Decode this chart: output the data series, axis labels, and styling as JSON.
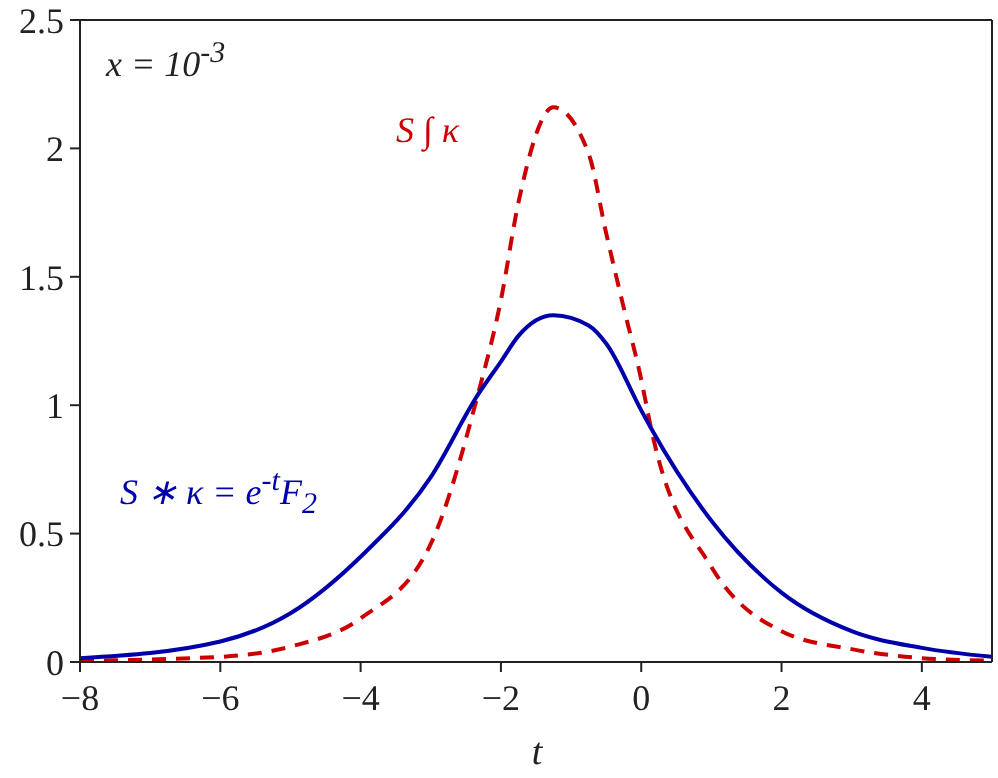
{
  "chart_data": {
    "type": "line",
    "xlabel": "t",
    "annotations": [
      "x = 10$^{-3}$"
    ],
    "series": [
      {
        "name": "S ∫ κ",
        "color": "#cc0000",
        "line_style": "dashed",
        "x": [
          -8,
          -6,
          -5,
          -4,
          -3,
          -2.33,
          -2,
          -1.75,
          -1.25,
          -0.75,
          -0.5,
          -0.25,
          0,
          0.14,
          1,
          2,
          3,
          4,
          5
        ],
        "values": [
          0.005,
          0.02,
          0.06,
          0.17,
          0.46,
          1.04,
          1.41,
          1.79,
          2.16,
          1.98,
          1.67,
          1.38,
          1.1,
          0.91,
          0.37,
          0.12,
          0.05,
          0.015,
          0.005
        ]
      },
      {
        "name": "S ∗ κ = e$^{-t}$F$_{2}$",
        "color": "#0000aa",
        "line_style": "solid",
        "x": [
          -8,
          -6,
          -5,
          -4,
          -3,
          -2.33,
          -2,
          -1.75,
          -1.25,
          -0.75,
          -0.5,
          0,
          0.14,
          1,
          2,
          3,
          4,
          5
        ],
        "values": [
          0.015,
          0.08,
          0.19,
          0.41,
          0.72,
          1.04,
          1.17,
          1.27,
          1.35,
          1.31,
          1.24,
          0.98,
          0.91,
          0.55,
          0.27,
          0.12,
          0.055,
          0.02
        ]
      }
    ],
    "xlim": [
      -8,
      5
    ],
    "xticks": [
      -8,
      -6,
      -4,
      -2,
      0,
      2,
      4
    ],
    "ylim": [
      0,
      2.5
    ],
    "yticks": [
      0,
      0.5,
      1,
      1.5,
      2,
      2.5
    ],
    "grid": false,
    "marker": "none"
  }
}
